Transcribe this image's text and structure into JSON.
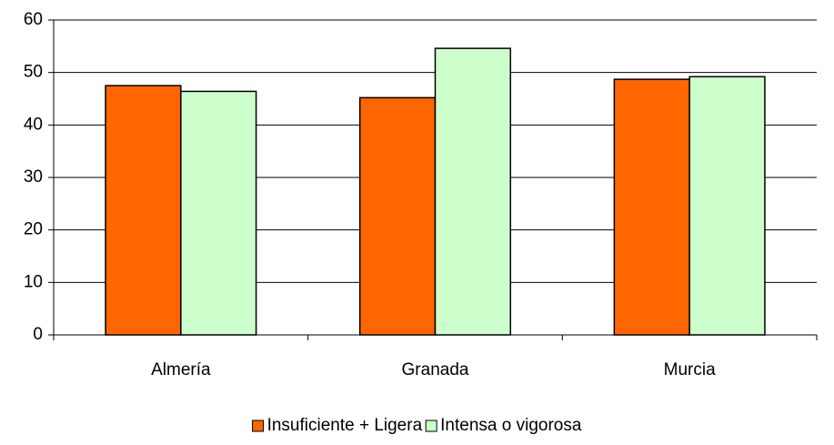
{
  "chart_data": {
    "type": "bar",
    "categories": [
      "Almería",
      "Granada",
      "Murcia"
    ],
    "series": [
      {
        "name": "Insuficiente + Ligera",
        "color": "#ff6600",
        "values": [
          47.5,
          45.2,
          48.7
        ]
      },
      {
        "name": "Intensa o vigorosa",
        "color": "#ccffcc",
        "values": [
          46.4,
          54.6,
          49.2
        ]
      }
    ],
    "ylim": [
      0,
      60
    ],
    "yticks": [
      0,
      10,
      20,
      30,
      40,
      50,
      60
    ],
    "grid": true,
    "legend": "bottom"
  }
}
